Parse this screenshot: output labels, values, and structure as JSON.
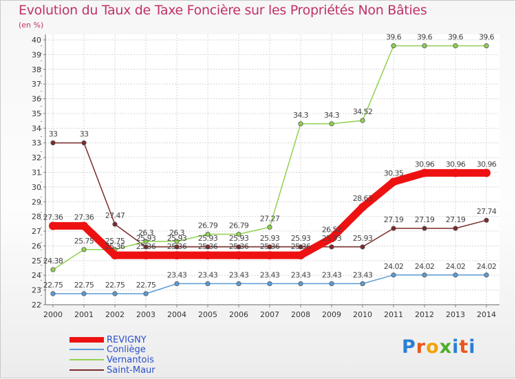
{
  "title": "Evolution du Taux de Taxe Foncière sur les Propriétés Non Bâties",
  "unit_label": "(en %)",
  "logo": {
    "text": "Proxiti",
    "letters": [
      "P",
      "r",
      "o",
      "x",
      "i",
      "t",
      "i"
    ],
    "colors": [
      "#2a7fd4",
      "#e8561b",
      "#f0a30a",
      "#4caf28",
      "#2a7fd4",
      "#e8561b",
      "#2a7fd4"
    ]
  },
  "chart_data": {
    "type": "line",
    "x": [
      "2000",
      "2001",
      "2002",
      "2003",
      "2004",
      "2005",
      "2006",
      "2007",
      "2008",
      "2009",
      "2010",
      "2011",
      "2012",
      "2013",
      "2014"
    ],
    "ylim": [
      22,
      40
    ],
    "yticks": [
      "22",
      "23",
      "24",
      "25",
      "26",
      "27",
      "28",
      "29",
      "30",
      "31",
      "32",
      "33",
      "34",
      "35",
      "36",
      "37",
      "38",
      "39",
      "40"
    ],
    "grid": true,
    "series": [
      {
        "name": "REVIGNY",
        "color": "#ee1111",
        "values": [
          27.36,
          27.36,
          25.36,
          25.36,
          25.36,
          25.36,
          25.36,
          25.36,
          25.36,
          26.52,
          28.63,
          30.35,
          30.96,
          30.96,
          30.96
        ],
        "labels": [
          "27.36",
          "27.36",
          "25.36",
          "25.36",
          "25.36",
          "25.36",
          "25.36",
          "25.36",
          "25.36",
          "26.52",
          "28.63",
          "30.35",
          "30.96",
          "30.96",
          "30.96"
        ]
      },
      {
        "name": "Conliège",
        "color": "#5b9bd5",
        "values": [
          22.75,
          22.75,
          22.75,
          22.75,
          23.43,
          23.43,
          23.43,
          23.43,
          23.43,
          23.43,
          23.43,
          24.02,
          24.02,
          24.02,
          24.02
        ],
        "labels": [
          "22.75",
          "22.75",
          "22.75",
          "22.75",
          "23.43",
          "23.43",
          "23.43",
          "23.43",
          "23.43",
          "23.43",
          "23.43",
          "24.02",
          "24.02",
          "24.02",
          "24.02"
        ]
      },
      {
        "name": "Vernantois",
        "color": "#8fd14f",
        "values": [
          24.38,
          25.75,
          25.75,
          26.3,
          26.3,
          26.79,
          26.79,
          27.27,
          34.3,
          34.3,
          34.52,
          39.6,
          39.6,
          39.6,
          39.6
        ],
        "labels": [
          "24.38",
          "25.75",
          "25.75",
          "26.3",
          "26.3",
          "26.79",
          "26.79",
          "27.27",
          "34.3",
          "34.3",
          "34.52",
          "39.6",
          "39.6",
          "39.6",
          "39.6"
        ]
      },
      {
        "name": "Saint-Maur",
        "color": "#7b2a2a",
        "values": [
          33,
          33,
          27.47,
          25.93,
          25.93,
          25.93,
          25.93,
          25.93,
          25.93,
          25.93,
          25.93,
          27.19,
          27.19,
          27.19,
          27.74
        ],
        "labels": [
          "33",
          "33",
          "27.47",
          "25.93",
          "25.93",
          "25.93",
          "25.93",
          "25.93",
          "25.93",
          "25.93",
          "25.93",
          "27.19",
          "27.19",
          "27.19",
          "27.74"
        ]
      }
    ]
  }
}
